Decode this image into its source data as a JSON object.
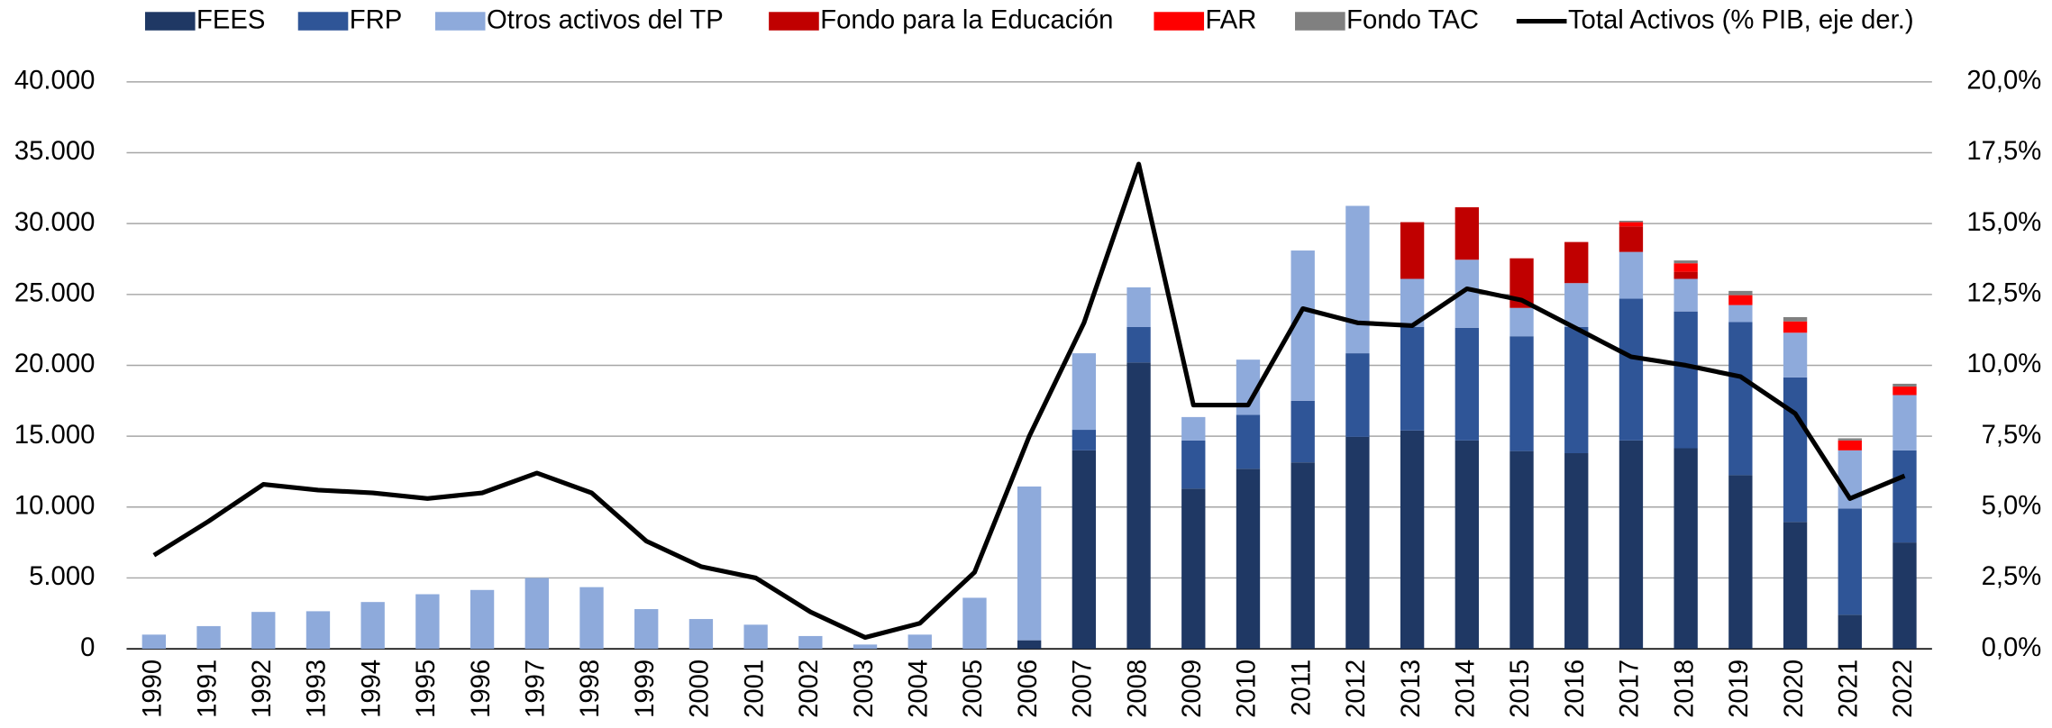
{
  "chart_data": {
    "type": "bar",
    "stacked": true,
    "categories": [
      "1990",
      "1991",
      "1992",
      "1993",
      "1994",
      "1995",
      "1996",
      "1997",
      "1998",
      "1999",
      "2000",
      "2001",
      "2002",
      "2003",
      "2004",
      "2005",
      "2006",
      "2007",
      "2008",
      "2009",
      "2010",
      "2011",
      "2012",
      "2013",
      "2014",
      "2015",
      "2016",
      "2017",
      "2018",
      "2019",
      "2020",
      "2021",
      "2022"
    ],
    "series": [
      {
        "name": "FEES",
        "color": "#1f3864",
        "values": [
          0,
          0,
          0,
          0,
          0,
          0,
          0,
          0,
          0,
          0,
          0,
          0,
          0,
          0,
          0,
          0,
          600,
          14000,
          20200,
          11300,
          12700,
          13150,
          14950,
          15400,
          14700,
          13950,
          13800,
          14700,
          14150,
          12250,
          8950,
          2400,
          7500
        ]
      },
      {
        "name": "FRP",
        "color": "#2f5597",
        "values": [
          0,
          0,
          0,
          0,
          0,
          0,
          0,
          0,
          0,
          0,
          0,
          0,
          0,
          0,
          0,
          0,
          0,
          1450,
          2500,
          3400,
          3800,
          4350,
          5900,
          7300,
          7950,
          8100,
          8900,
          10000,
          9650,
          10800,
          10200,
          7500,
          6500
        ]
      },
      {
        "name": "Otros activos del TP",
        "color": "#8eaadb",
        "values": [
          1000,
          1600,
          2600,
          2650,
          3300,
          3850,
          4150,
          5000,
          4350,
          2800,
          2100,
          1700,
          900,
          300,
          1000,
          3600,
          10850,
          5400,
          2800,
          1650,
          3900,
          10600,
          10400,
          3400,
          4800,
          2000,
          3100,
          3300,
          2300,
          1200,
          3150,
          4100,
          3900
        ]
      },
      {
        "name": "Fondo para la Educación",
        "color": "#c00000",
        "values": [
          0,
          0,
          0,
          0,
          0,
          0,
          0,
          0,
          0,
          0,
          0,
          0,
          0,
          0,
          0,
          0,
          0,
          0,
          0,
          0,
          0,
          0,
          0,
          4000,
          3700,
          3500,
          2900,
          1800,
          500,
          0,
          0,
          0,
          0
        ]
      },
      {
        "name": "FAR",
        "color": "#ff0000",
        "values": [
          0,
          0,
          0,
          0,
          0,
          0,
          0,
          0,
          0,
          0,
          0,
          0,
          0,
          0,
          0,
          0,
          0,
          0,
          0,
          0,
          0,
          0,
          0,
          0,
          0,
          0,
          0,
          300,
          600,
          700,
          800,
          700,
          600
        ]
      },
      {
        "name": "Fondo TAC",
        "color": "#808080",
        "values": [
          0,
          0,
          0,
          0,
          0,
          0,
          0,
          0,
          0,
          0,
          0,
          0,
          0,
          0,
          0,
          0,
          0,
          0,
          0,
          0,
          0,
          0,
          0,
          0,
          0,
          0,
          0,
          100,
          200,
          300,
          300,
          150,
          200
        ]
      },
      {
        "name": "Total Activos (% PIB, eje der.)",
        "color": "#000000",
        "type": "line",
        "axis": "y2",
        "values": [
          3.3,
          4.5,
          5.8,
          5.6,
          5.5,
          5.3,
          5.5,
          6.2,
          5.5,
          3.8,
          2.9,
          2.5,
          1.3,
          0.4,
          0.9,
          2.7,
          7.5,
          11.5,
          17.1,
          8.6,
          8.6,
          12.0,
          11.5,
          11.4,
          12.7,
          12.3,
          11.3,
          10.3,
          10.0,
          9.6,
          8.3,
          5.3,
          6.1
        ]
      }
    ],
    "ylim": [
      0,
      40000
    ],
    "yticks": [
      0,
      {
        "value": 5000,
        "label": "5.000"
      },
      {
        "value": 10000,
        "label": "10.000"
      },
      {
        "value": 15000,
        "label": "15.000"
      },
      {
        "value": 20000,
        "label": "20.000"
      },
      {
        "value": 25000,
        "label": "25.000"
      },
      {
        "value": 30000,
        "label": "30.000"
      },
      {
        "value": 35000,
        "label": "35.000"
      },
      {
        "value": 40000,
        "label": "40.000"
      }
    ],
    "y2lim": [
      0,
      20
    ],
    "y2ticks": [
      {
        "value": 0,
        "label": "0,0%"
      },
      {
        "value": 2.5,
        "label": "2,5%"
      },
      {
        "value": 5,
        "label": "5,0%"
      },
      {
        "value": 7.5,
        "label": "7,5%"
      },
      {
        "value": 10,
        "label": "10,0%"
      },
      {
        "value": 12.5,
        "label": "12,5%"
      },
      {
        "value": 15,
        "label": "15,0%"
      },
      {
        "value": 17.5,
        "label": "17,5%"
      },
      {
        "value": 20,
        "label": "20,0%"
      }
    ],
    "grid": true,
    "legend": "top"
  }
}
